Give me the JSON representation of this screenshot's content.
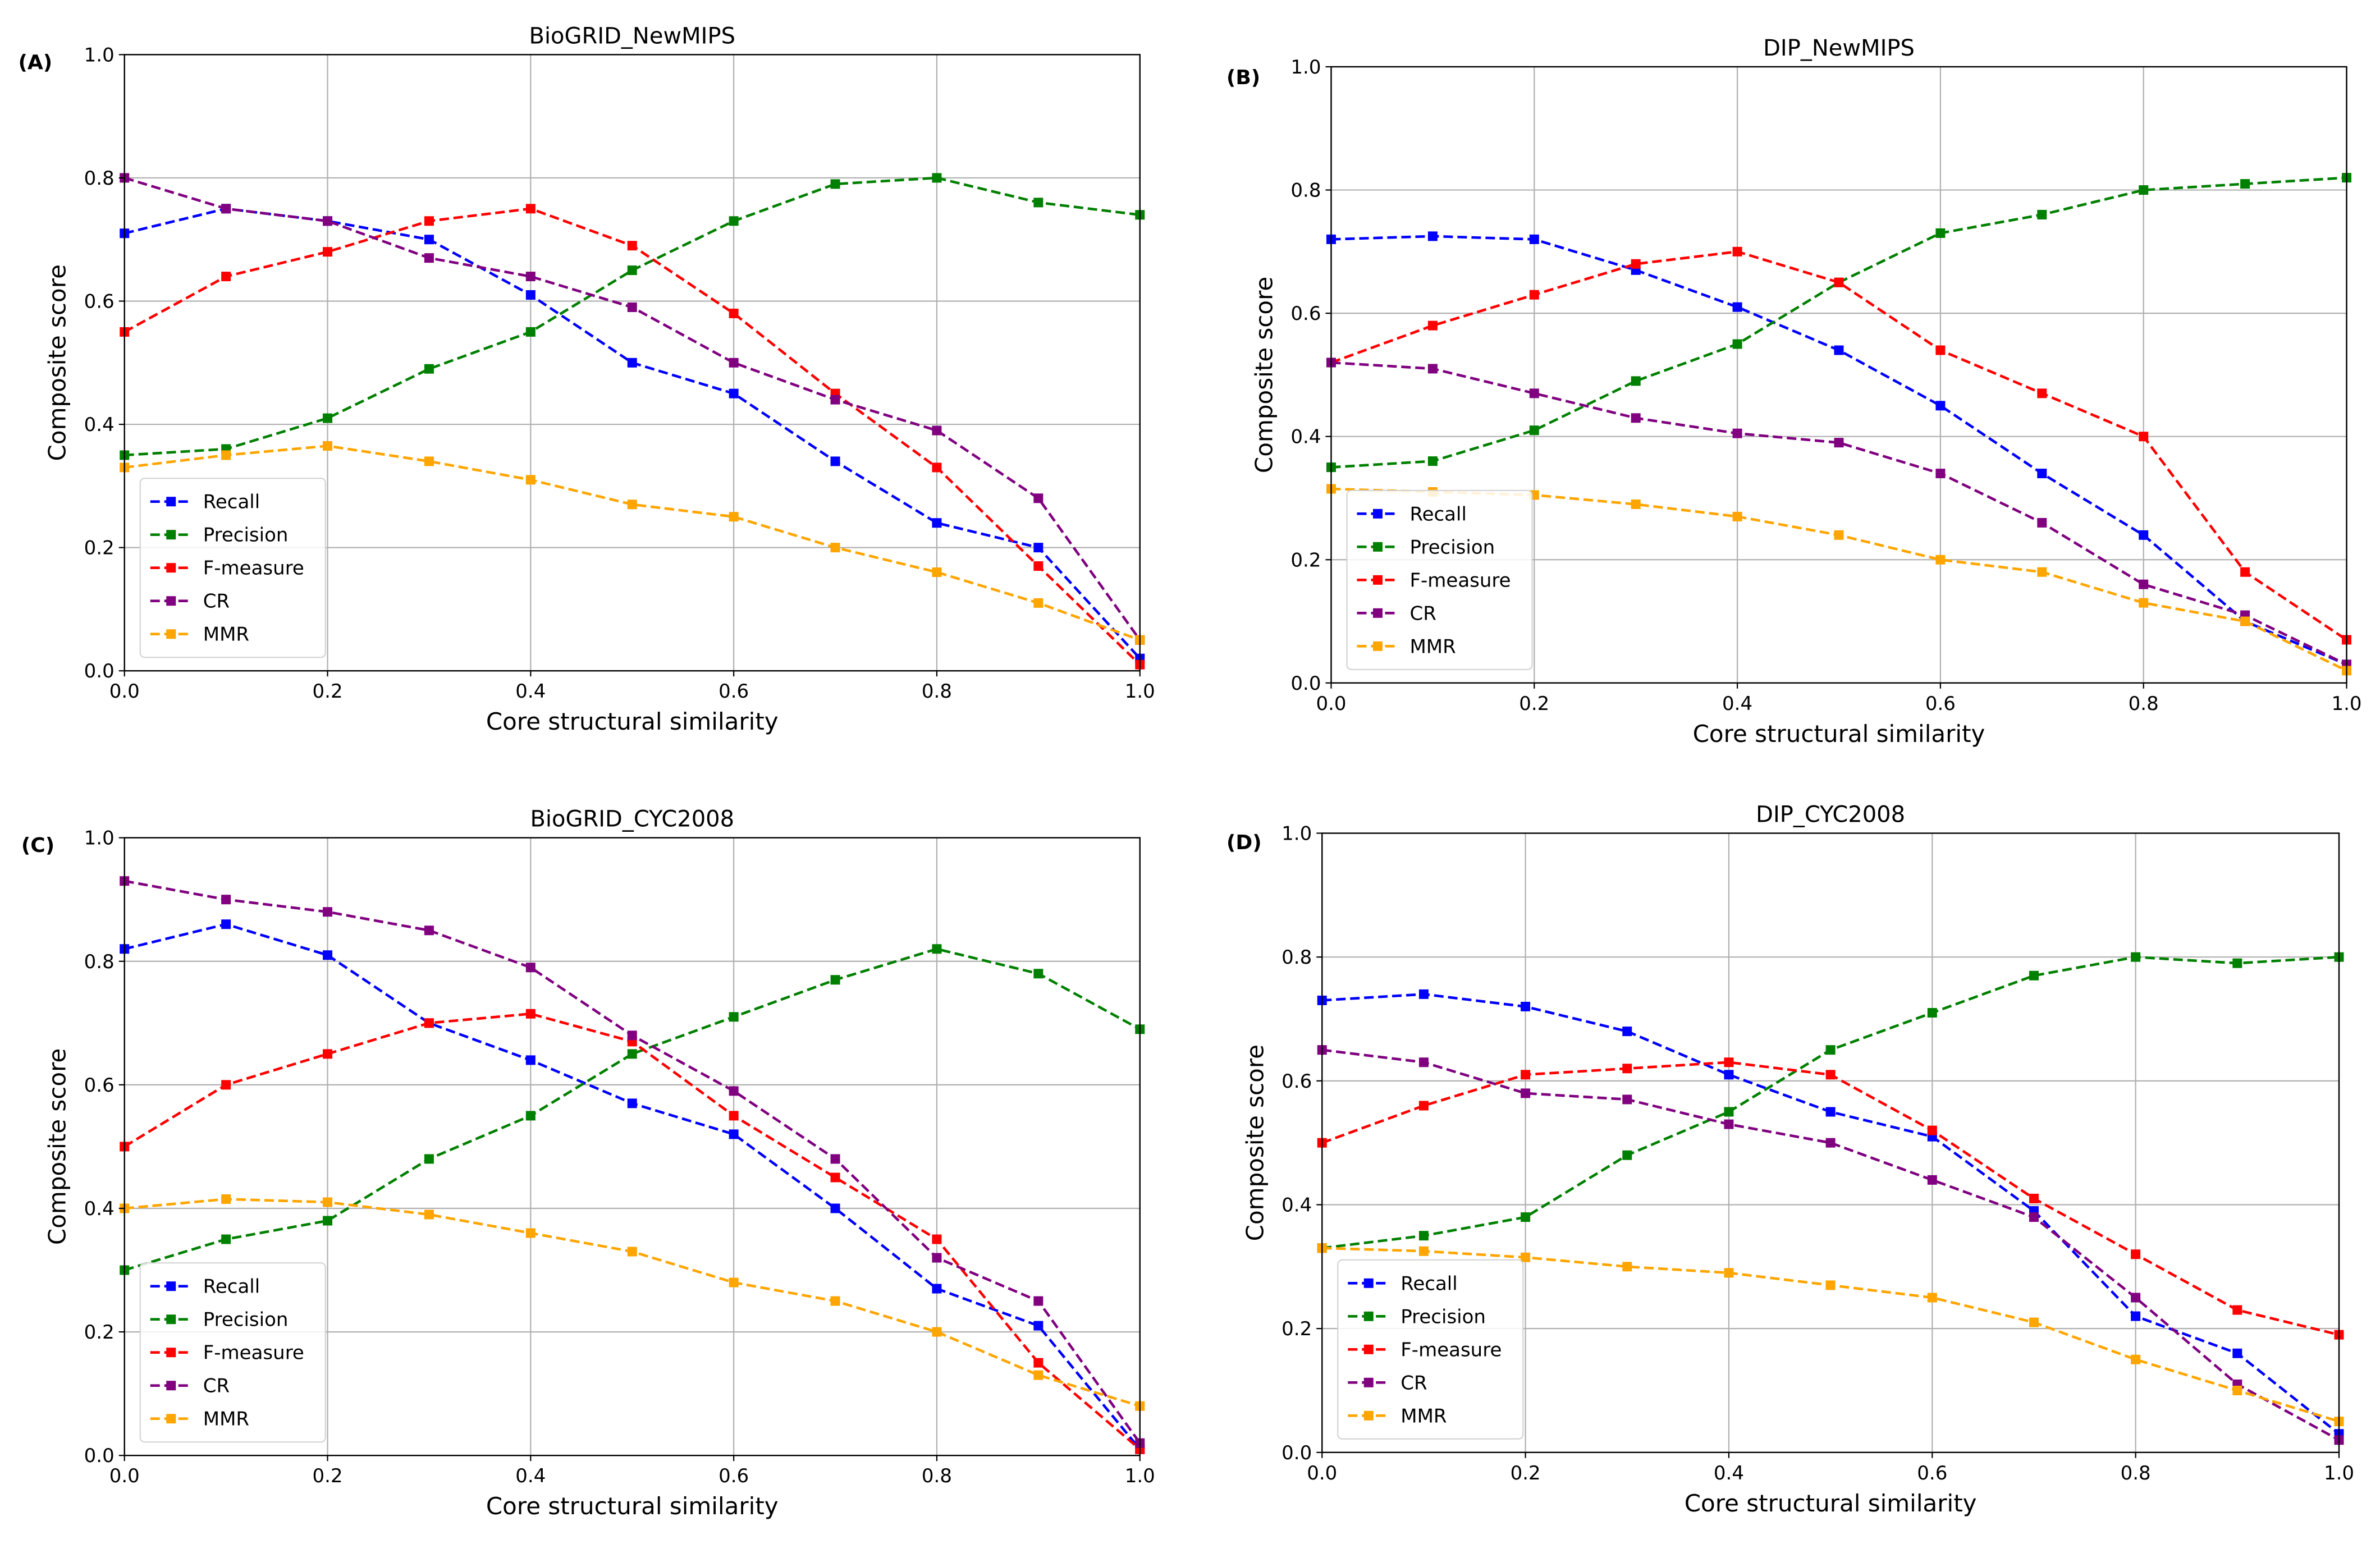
{
  "chart_data": [
    {
      "type": "line",
      "panel_label": "(A)",
      "title": "BioGRID_NewMIPS",
      "xlabel": "Core structural similarity",
      "ylabel": "Composite score",
      "xlim": [
        0,
        1
      ],
      "ylim": [
        0,
        1
      ],
      "xticks": [
        "0.0",
        "0.2",
        "0.4",
        "0.6",
        "0.8",
        "1.0"
      ],
      "yticks": [
        "0.0",
        "0.2",
        "0.4",
        "0.6",
        "0.8",
        "1.0"
      ],
      "grid": true,
      "legend_position": "lower-left",
      "x": [
        0.0,
        0.1,
        0.2,
        0.3,
        0.4,
        0.5,
        0.6,
        0.7,
        0.8,
        0.9,
        1.0
      ],
      "series": [
        {
          "name": "Recall",
          "color": "#0000ff",
          "values": [
            0.71,
            0.75,
            0.73,
            0.7,
            0.61,
            0.5,
            0.45,
            0.34,
            0.24,
            0.2,
            0.02
          ]
        },
        {
          "name": "Precision",
          "color": "#008000",
          "values": [
            0.35,
            0.36,
            0.41,
            0.49,
            0.55,
            0.65,
            0.73,
            0.79,
            0.8,
            0.76,
            0.74
          ]
        },
        {
          "name": "F-measure",
          "color": "#ff0000",
          "values": [
            0.55,
            0.64,
            0.68,
            0.73,
            0.75,
            0.69,
            0.58,
            0.45,
            0.33,
            0.17,
            0.01
          ]
        },
        {
          "name": "CR",
          "color": "#800080",
          "values": [
            0.8,
            0.75,
            0.73,
            0.67,
            0.64,
            0.59,
            0.5,
            0.44,
            0.39,
            0.28,
            0.05
          ]
        },
        {
          "name": "MMR",
          "color": "#ffa500",
          "values": [
            0.33,
            0.35,
            0.365,
            0.34,
            0.31,
            0.27,
            0.25,
            0.2,
            0.16,
            0.11,
            0.05
          ]
        }
      ]
    },
    {
      "type": "line",
      "panel_label": "(B)",
      "title": "DIP_NewMIPS",
      "xlabel": "Core structural similarity",
      "ylabel": "Composite score",
      "xlim": [
        0,
        1
      ],
      "ylim": [
        0,
        1
      ],
      "xticks": [
        "0.0",
        "0.2",
        "0.4",
        "0.6",
        "0.8",
        "1.0"
      ],
      "yticks": [
        "0.0",
        "0.2",
        "0.4",
        "0.6",
        "0.8",
        "1.0"
      ],
      "grid": true,
      "legend_position": "lower-left",
      "x": [
        0.0,
        0.1,
        0.2,
        0.3,
        0.4,
        0.5,
        0.6,
        0.7,
        0.8,
        0.9,
        1.0
      ],
      "series": [
        {
          "name": "Recall",
          "color": "#0000ff",
          "values": [
            0.72,
            0.725,
            0.72,
            0.67,
            0.61,
            0.54,
            0.45,
            0.34,
            0.24,
            0.1,
            0.03
          ]
        },
        {
          "name": "Precision",
          "color": "#008000",
          "values": [
            0.35,
            0.36,
            0.41,
            0.49,
            0.55,
            0.65,
            0.73,
            0.76,
            0.8,
            0.81,
            0.82
          ]
        },
        {
          "name": "F-measure",
          "color": "#ff0000",
          "values": [
            0.52,
            0.58,
            0.63,
            0.68,
            0.7,
            0.65,
            0.54,
            0.47,
            0.4,
            0.18,
            0.07
          ]
        },
        {
          "name": "CR",
          "color": "#800080",
          "values": [
            0.52,
            0.51,
            0.47,
            0.43,
            0.405,
            0.39,
            0.34,
            0.26,
            0.16,
            0.11,
            0.03
          ]
        },
        {
          "name": "MMR",
          "color": "#ffa500",
          "values": [
            0.315,
            0.31,
            0.305,
            0.29,
            0.27,
            0.24,
            0.2,
            0.18,
            0.13,
            0.1,
            0.02
          ]
        }
      ]
    },
    {
      "type": "line",
      "panel_label": "(C)",
      "title": "BioGRID_CYC2008",
      "xlabel": "Core structural similarity",
      "ylabel": "Composite score",
      "xlim": [
        0,
        1
      ],
      "ylim": [
        0,
        1
      ],
      "xticks": [
        "0.0",
        "0.2",
        "0.4",
        "0.6",
        "0.8",
        "1.0"
      ],
      "yticks": [
        "0.0",
        "0.2",
        "0.4",
        "0.6",
        "0.8",
        "1.0"
      ],
      "grid": true,
      "legend_position": "lower-left",
      "x": [
        0.0,
        0.1,
        0.2,
        0.3,
        0.4,
        0.5,
        0.6,
        0.7,
        0.8,
        0.9,
        1.0
      ],
      "series": [
        {
          "name": "Recall",
          "color": "#0000ff",
          "values": [
            0.82,
            0.86,
            0.81,
            0.7,
            0.64,
            0.57,
            0.52,
            0.4,
            0.27,
            0.21,
            0.01
          ]
        },
        {
          "name": "Precision",
          "color": "#008000",
          "values": [
            0.3,
            0.35,
            0.38,
            0.48,
            0.55,
            0.65,
            0.71,
            0.77,
            0.82,
            0.78,
            0.69
          ]
        },
        {
          "name": "F-measure",
          "color": "#ff0000",
          "values": [
            0.5,
            0.6,
            0.65,
            0.7,
            0.715,
            0.67,
            0.55,
            0.45,
            0.35,
            0.15,
            0.01
          ]
        },
        {
          "name": "CR",
          "color": "#800080",
          "values": [
            0.93,
            0.9,
            0.88,
            0.85,
            0.79,
            0.68,
            0.59,
            0.48,
            0.32,
            0.25,
            0.02
          ]
        },
        {
          "name": "MMR",
          "color": "#ffa500",
          "values": [
            0.4,
            0.415,
            0.41,
            0.39,
            0.36,
            0.33,
            0.28,
            0.25,
            0.2,
            0.13,
            0.08
          ]
        }
      ]
    },
    {
      "type": "line",
      "panel_label": "(D)",
      "title": "DIP_CYC2008",
      "xlabel": "Core structural similarity",
      "ylabel": "Composite score",
      "xlim": [
        0,
        1
      ],
      "ylim": [
        0,
        1
      ],
      "xticks": [
        "0.0",
        "0.2",
        "0.4",
        "0.6",
        "0.8",
        "1.0"
      ],
      "yticks": [
        "0.0",
        "0.2",
        "0.4",
        "0.6",
        "0.8",
        "1.0"
      ],
      "grid": true,
      "legend_position": "lower-left",
      "x": [
        0.0,
        0.1,
        0.2,
        0.3,
        0.4,
        0.5,
        0.6,
        0.7,
        0.8,
        0.9,
        1.0
      ],
      "series": [
        {
          "name": "Recall",
          "color": "#0000ff",
          "values": [
            0.73,
            0.74,
            0.72,
            0.68,
            0.61,
            0.55,
            0.51,
            0.39,
            0.22,
            0.16,
            0.03
          ]
        },
        {
          "name": "Precision",
          "color": "#008000",
          "values": [
            0.33,
            0.35,
            0.38,
            0.48,
            0.55,
            0.65,
            0.71,
            0.77,
            0.8,
            0.79,
            0.8
          ]
        },
        {
          "name": "F-measure",
          "color": "#ff0000",
          "values": [
            0.5,
            0.56,
            0.61,
            0.62,
            0.63,
            0.61,
            0.52,
            0.41,
            0.32,
            0.23,
            0.19
          ]
        },
        {
          "name": "CR",
          "color": "#800080",
          "values": [
            0.65,
            0.63,
            0.58,
            0.57,
            0.53,
            0.5,
            0.44,
            0.38,
            0.25,
            0.11,
            0.02
          ]
        },
        {
          "name": "MMR",
          "color": "#ffa500",
          "values": [
            0.33,
            0.325,
            0.315,
            0.3,
            0.29,
            0.27,
            0.25,
            0.21,
            0.15,
            0.1,
            0.05
          ]
        }
      ]
    }
  ]
}
